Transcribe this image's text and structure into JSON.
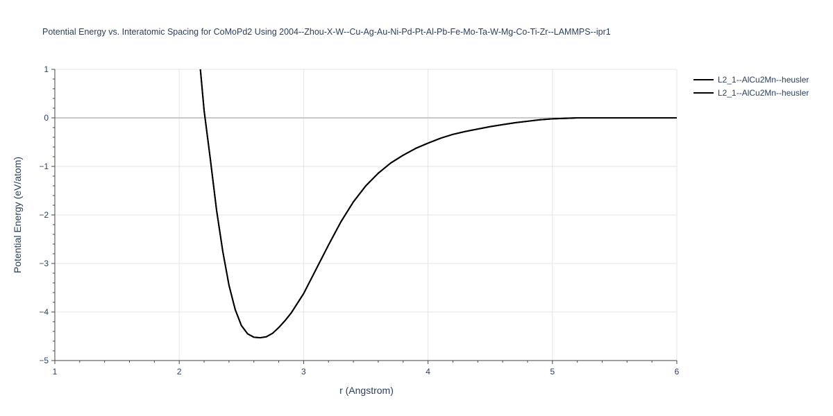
{
  "chart_data": {
    "type": "line",
    "title": "Potential Energy vs. Interatomic Spacing for CoMoPd2 Using 2004--Zhou-X-W--Cu-Ag-Au-Ni-Pd-Pt-Al-Pb-Fe-Mo-Ta-W-Mg-Co-Ti-Zr--LAMMPS--ipr1",
    "xlabel": "r (Angstrom)",
    "ylabel": "Potential Energy (eV/atom)",
    "xlim": [
      1,
      6
    ],
    "ylim": [
      -5,
      1
    ],
    "x_ticks": [
      "1",
      "2",
      "3",
      "4",
      "5",
      "6"
    ],
    "y_ticks": [
      "1",
      "0",
      "−1",
      "−2",
      "−3",
      "−4",
      "−5"
    ],
    "grid": true,
    "legend_position": "top-right",
    "series": [
      {
        "name": "L2_1--AlCu2Mn--heusler",
        "color": "#000000",
        "x": [
          2.17,
          2.2,
          2.25,
          2.3,
          2.35,
          2.4,
          2.45,
          2.5,
          2.55,
          2.6,
          2.65,
          2.7,
          2.75,
          2.8,
          2.85,
          2.9,
          3.0,
          3.1,
          3.2,
          3.3,
          3.4,
          3.5,
          3.6,
          3.7,
          3.8,
          3.9,
          4.0,
          4.1,
          4.2,
          4.3,
          4.4,
          4.5,
          4.6,
          4.7,
          4.8,
          4.9,
          5.0,
          5.1,
          5.2,
          5.3,
          5.5,
          6.0
        ],
        "y": [
          1.0,
          0.15,
          -0.85,
          -1.9,
          -2.75,
          -3.45,
          -3.95,
          -4.28,
          -4.45,
          -4.52,
          -4.53,
          -4.51,
          -4.44,
          -4.32,
          -4.18,
          -4.02,
          -3.62,
          -3.12,
          -2.62,
          -2.14,
          -1.73,
          -1.4,
          -1.14,
          -0.93,
          -0.77,
          -0.63,
          -0.52,
          -0.42,
          -0.34,
          -0.28,
          -0.23,
          -0.18,
          -0.14,
          -0.1,
          -0.07,
          -0.04,
          -0.02,
          -0.01,
          0.0,
          0.0,
          0.0,
          0.0
        ]
      },
      {
        "name": "L2_1--AlCu2Mn--heusler",
        "color": "#000000",
        "x": [
          2.17,
          2.2,
          2.25,
          2.3,
          2.35,
          2.4,
          2.45,
          2.5,
          2.55,
          2.6,
          2.65,
          2.7,
          2.75,
          2.8,
          2.85,
          2.9,
          3.0,
          3.1,
          3.2,
          3.3,
          3.4,
          3.5,
          3.6,
          3.7,
          3.8,
          3.9,
          4.0,
          4.1,
          4.2,
          4.3,
          4.4,
          4.5,
          4.6,
          4.7,
          4.8,
          4.9,
          5.0,
          5.1,
          5.2,
          5.3,
          5.5,
          6.0
        ],
        "y": [
          1.0,
          0.15,
          -0.85,
          -1.9,
          -2.75,
          -3.45,
          -3.95,
          -4.28,
          -4.45,
          -4.52,
          -4.53,
          -4.51,
          -4.44,
          -4.32,
          -4.18,
          -4.02,
          -3.62,
          -3.12,
          -2.62,
          -2.14,
          -1.73,
          -1.4,
          -1.14,
          -0.93,
          -0.77,
          -0.63,
          -0.52,
          -0.42,
          -0.34,
          -0.28,
          -0.23,
          -0.18,
          -0.14,
          -0.1,
          -0.07,
          -0.04,
          -0.02,
          -0.01,
          0.0,
          0.0,
          0.0,
          0.0
        ]
      }
    ]
  }
}
